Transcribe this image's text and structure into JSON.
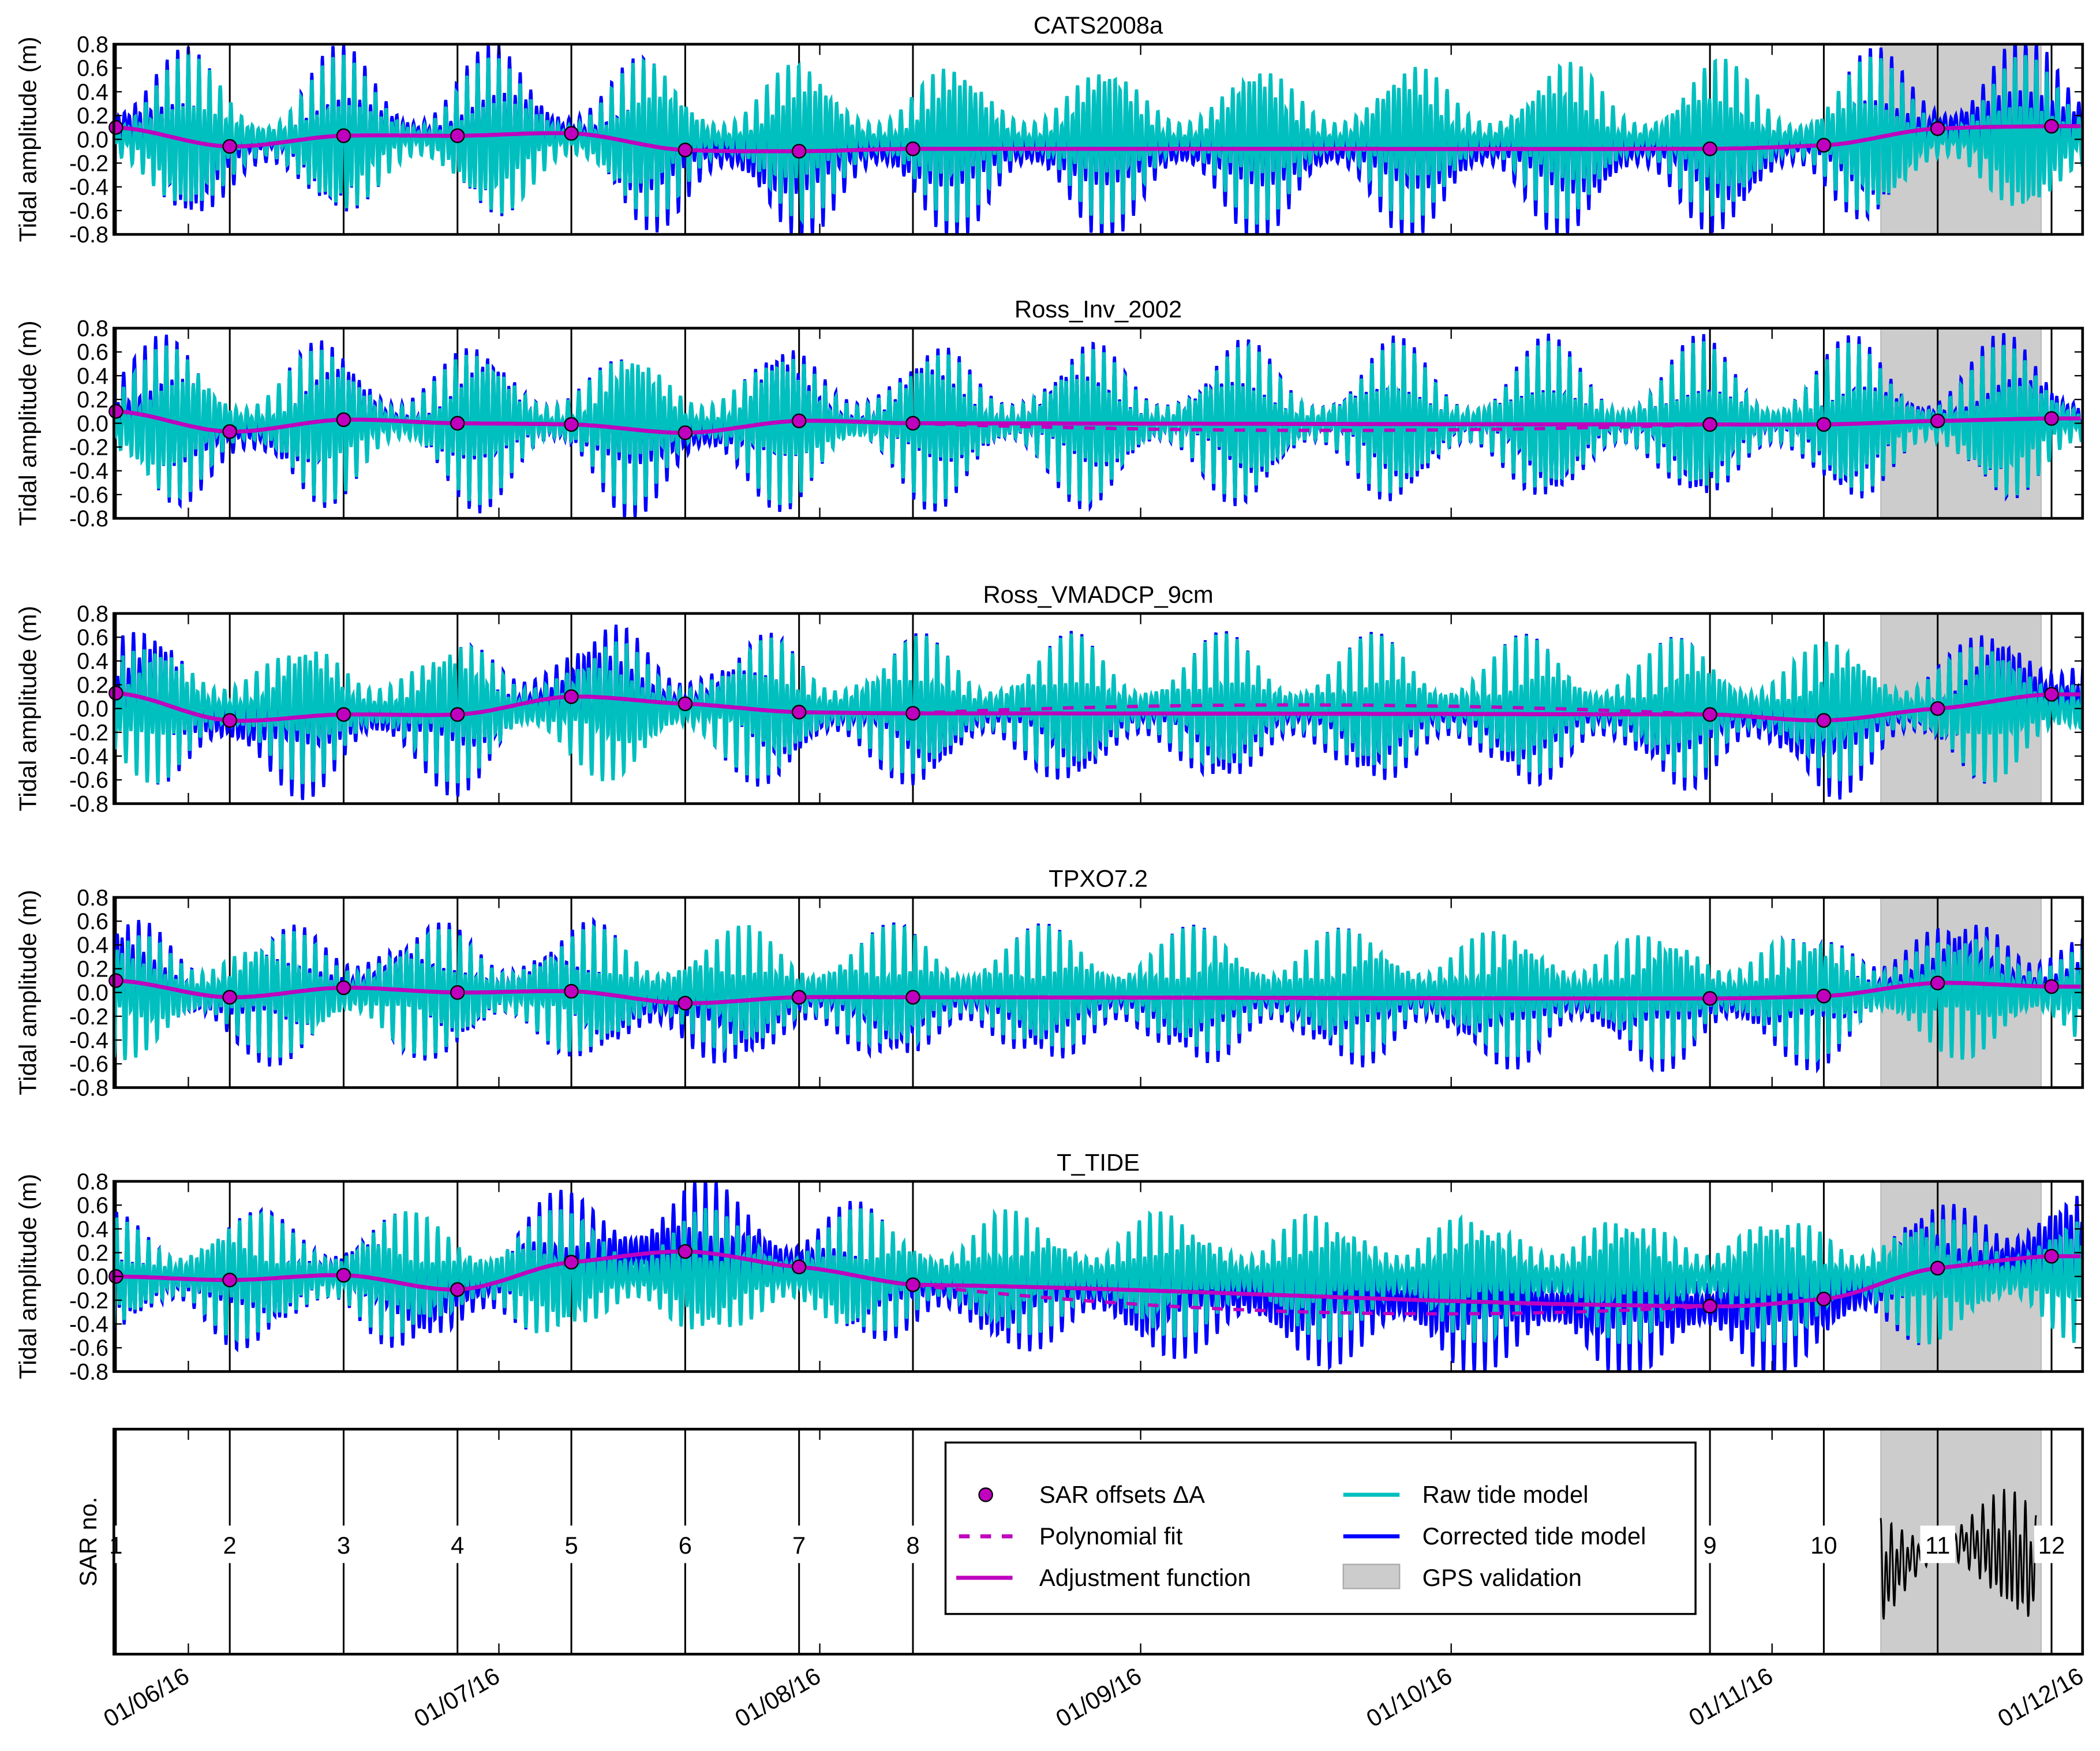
{
  "chart_data": {
    "type": "line",
    "x_units": "days relative to 01/06/16",
    "xlim": [
      -7.2,
      183
    ],
    "x_ticks": [
      {
        "day": 0,
        "label": "01/06/16"
      },
      {
        "day": 30,
        "label": "01/07/16"
      },
      {
        "day": 61,
        "label": "01/08/16"
      },
      {
        "day": 92,
        "label": "01/09/16"
      },
      {
        "day": 122,
        "label": "01/10/16"
      },
      {
        "day": 153,
        "label": "01/11/16"
      },
      {
        "day": 183,
        "label": "01/12/16"
      }
    ],
    "ylabel": "Tidal amplitude (m)",
    "ylim": [
      -0.8,
      0.8
    ],
    "y_ticks": [
      "0.8",
      "0.6",
      "0.4",
      "0.2",
      "0.0",
      "-0.2",
      "-0.4",
      "-0.6",
      "-0.8"
    ],
    "y_tick_values": [
      0.8,
      0.6,
      0.4,
      0.2,
      0.0,
      -0.2,
      -0.4,
      -0.6,
      -0.8
    ],
    "sar": {
      "ylabel": "SAR no.",
      "numbers": [
        "1",
        "2",
        "3",
        "4",
        "5",
        "6",
        "7",
        "8",
        "9",
        "10",
        "11",
        "12"
      ],
      "days": [
        -7,
        4,
        15,
        26,
        37,
        48,
        59,
        70,
        147,
        158,
        169,
        180
      ]
    },
    "gps_validation_days": [
      163.5,
      179
    ],
    "colors": {
      "raw": "#00BFBF",
      "corrected": "#0000FF",
      "adjust": "#BF00BF",
      "gps": "#CCCCCC"
    },
    "panels": [
      {
        "title": "CATS2008a",
        "offsets": [
          0.1,
          -0.06,
          0.03,
          0.03,
          0.05,
          -0.09,
          -0.1,
          -0.08,
          -0.08,
          -0.05,
          0.09,
          0.11
        ],
        "poly_gap_mid": -0.08,
        "seed": 0.0
      },
      {
        "title": "Ross_Inv_2002",
        "offsets": [
          0.1,
          -0.07,
          0.03,
          0.0,
          -0.01,
          -0.08,
          0.02,
          0.0,
          -0.01,
          -0.01,
          0.02,
          0.04
        ],
        "poly_gap_mid": -0.06,
        "seed": 0.7
      },
      {
        "title": "Ross_VMADCP_9cm",
        "offsets": [
          0.13,
          -0.1,
          -0.05,
          -0.05,
          0.1,
          0.04,
          -0.03,
          -0.04,
          -0.05,
          -0.1,
          0.0,
          0.12
        ],
        "poly_gap_mid": 0.03,
        "seed": 1.4
      },
      {
        "title": "TPXO7.2",
        "offsets": [
          0.1,
          -0.04,
          0.04,
          0.0,
          0.01,
          -0.09,
          -0.04,
          -0.04,
          -0.05,
          -0.03,
          0.08,
          0.05
        ],
        "poly_gap_mid": -0.05,
        "seed": 2.1
      },
      {
        "title": "T_TIDE",
        "offsets": [
          0.0,
          -0.03,
          0.01,
          -0.11,
          0.12,
          0.21,
          0.08,
          -0.07,
          -0.25,
          -0.19,
          0.07,
          0.17
        ],
        "poly_gap_mid": -0.3,
        "seed": 2.8
      }
    ],
    "legend": [
      {
        "label": "SAR offsets ΔA",
        "kind": "marker"
      },
      {
        "label": "Polynomial fit",
        "kind": "dashed"
      },
      {
        "label": "Adjustment function",
        "kind": "line-adjust"
      },
      {
        "label": "Raw tide model",
        "kind": "line-raw"
      },
      {
        "label": "Corrected tide model",
        "kind": "line-corrected"
      },
      {
        "label": "GPS validation",
        "kind": "patch"
      }
    ]
  }
}
